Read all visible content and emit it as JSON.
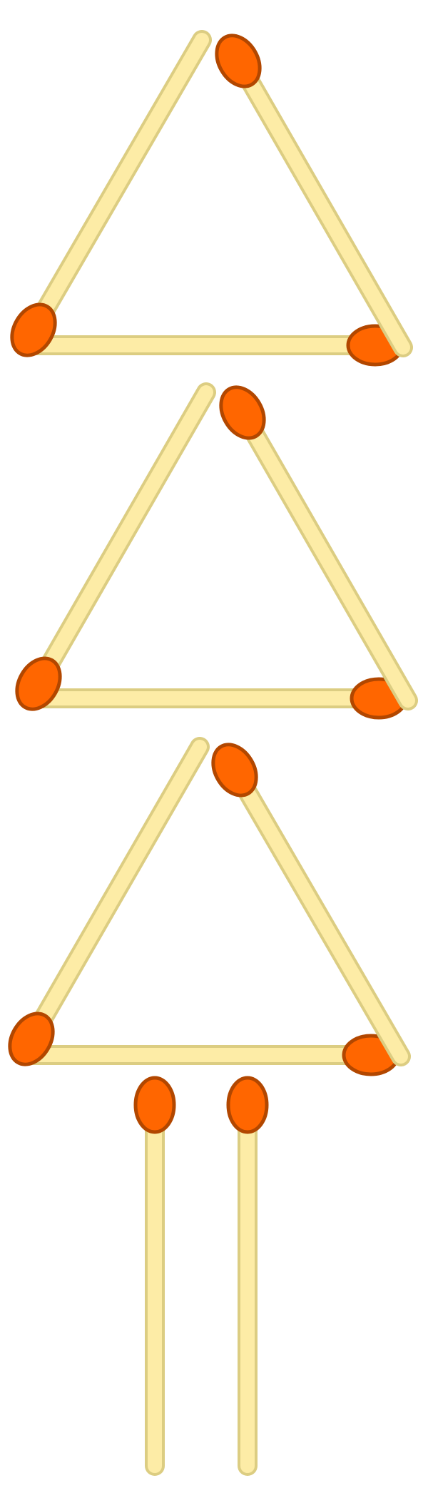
{
  "colors": {
    "stick_fill": "#fdeca6",
    "stick_stroke": "#dccd82",
    "head_fill": "#ff6600",
    "head_stroke": "#b24700",
    "background": "#ffffff"
  },
  "figure": {
    "triangles": [
      {
        "name": "triangle-top",
        "sticks": [
          "left",
          "right",
          "bottom"
        ]
      },
      {
        "name": "triangle-middle",
        "sticks": [
          "left",
          "right",
          "bottom"
        ]
      },
      {
        "name": "triangle-lower",
        "sticks": [
          "left",
          "right",
          "bottom"
        ]
      }
    ],
    "legs": [
      {
        "name": "leg-left"
      },
      {
        "name": "leg-right"
      }
    ]
  }
}
